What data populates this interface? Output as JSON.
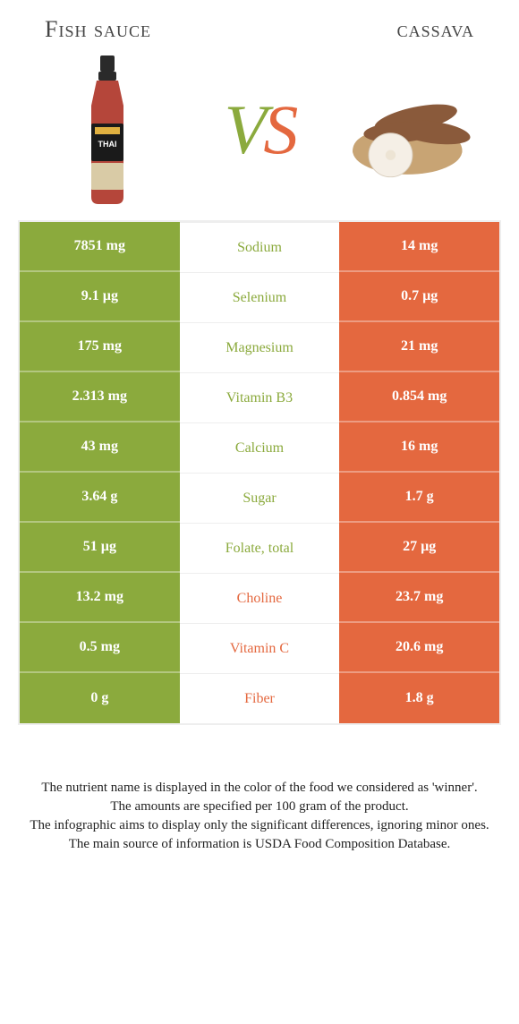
{
  "header": {
    "left_title": "Fish sauce",
    "right_title": "cassava",
    "vs_v": "V",
    "vs_s": "S"
  },
  "colors": {
    "green": "#8baa3d",
    "orange": "#e4683f",
    "bg": "#ffffff"
  },
  "rows": [
    {
      "nutrient": "Sodium",
      "left": "7851 mg",
      "right": "14 mg",
      "winner": "left"
    },
    {
      "nutrient": "Selenium",
      "left": "9.1 µg",
      "right": "0.7 µg",
      "winner": "left"
    },
    {
      "nutrient": "Magnesium",
      "left": "175 mg",
      "right": "21 mg",
      "winner": "left"
    },
    {
      "nutrient": "Vitamin B3",
      "left": "2.313 mg",
      "right": "0.854 mg",
      "winner": "left"
    },
    {
      "nutrient": "Calcium",
      "left": "43 mg",
      "right": "16 mg",
      "winner": "left"
    },
    {
      "nutrient": "Sugar",
      "left": "3.64 g",
      "right": "1.7 g",
      "winner": "left"
    },
    {
      "nutrient": "Folate, total",
      "left": "51 µg",
      "right": "27 µg",
      "winner": "left"
    },
    {
      "nutrient": "Choline",
      "left": "13.2 mg",
      "right": "23.7 mg",
      "winner": "right"
    },
    {
      "nutrient": "Vitamin C",
      "left": "0.5 mg",
      "right": "20.6 mg",
      "winner": "right"
    },
    {
      "nutrient": "Fiber",
      "left": "0 g",
      "right": "1.8 g",
      "winner": "right"
    }
  ],
  "footnote": {
    "line1": "The nutrient name is displayed in the color of the food we considered as 'winner'.",
    "line2": "The amounts are specified per 100 gram of the product.",
    "line3": "The infographic aims to display only the significant differences, ignoring minor ones.",
    "line4": "The main source of information is USDA Food Composition Database."
  }
}
